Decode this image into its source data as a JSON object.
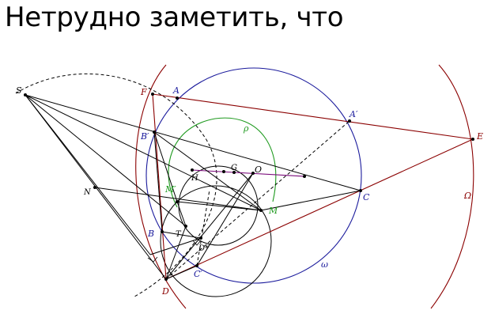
{
  "heading": "Нетрудно заметить, что",
  "colors": {
    "black": "#000000",
    "blue": "#1a1a9c",
    "red": "#8b0000",
    "green": "#1f9a1f",
    "purple": "#7a0a7a"
  },
  "points": {
    "S": "S",
    "F": "F",
    "A": "A",
    "A_prime": "A′",
    "E": "E",
    "B_prime": "B′",
    "rho": "ρ",
    "H": "H",
    "G": "G",
    "O": "O",
    "N": "N",
    "M_prime": "M′",
    "M": "M",
    "C": "C",
    "Omega": "Ω",
    "B": "B",
    "T": "T",
    "D_star": "D*",
    "C_prime": "C′",
    "omega": "ω",
    "D": "D"
  }
}
